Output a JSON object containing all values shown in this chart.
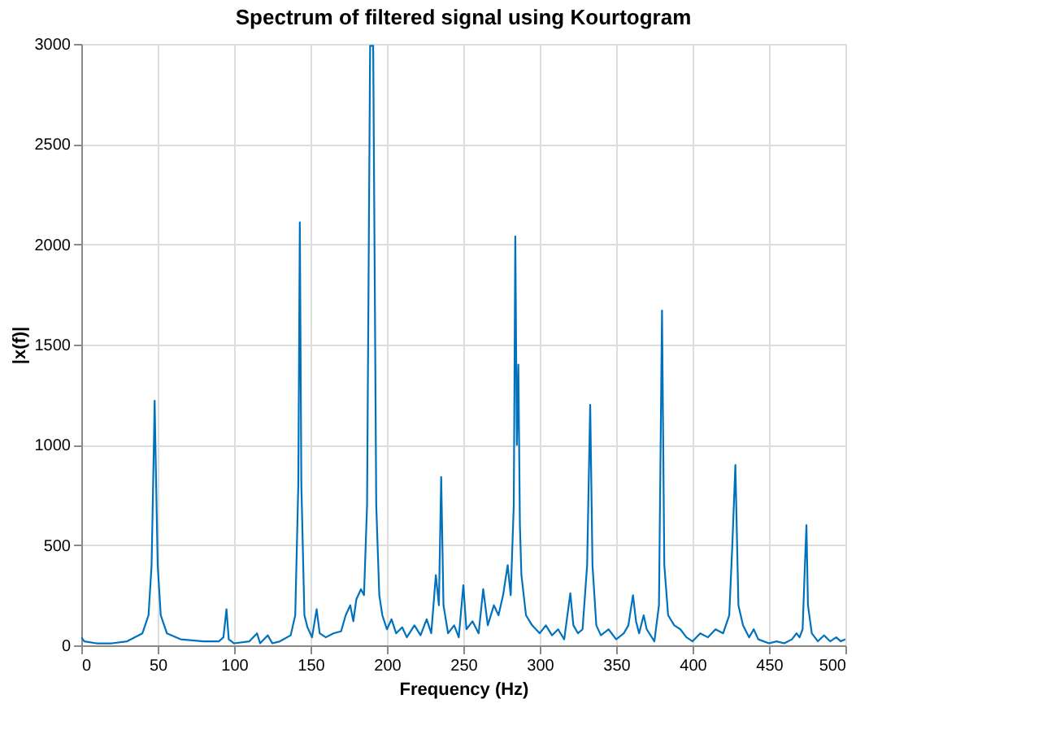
{
  "chart_data": {
    "type": "line",
    "title": "Spectrum of filtered signal using Kourtogram",
    "xlabel": "Frequency (Hz)",
    "ylabel": "|x(f)|",
    "xlim": [
      0,
      500
    ],
    "xticks": [
      0,
      50,
      100,
      150,
      200,
      250,
      300,
      350,
      400,
      450,
      500
    ],
    "ylim": [
      0,
      3000
    ],
    "yticks": [
      0,
      500,
      1000,
      1500,
      2000,
      2500,
      3000
    ],
    "grid": true,
    "series": [
      {
        "color": "#0072bd",
        "x": [
          0,
          2,
          10,
          20,
          30,
          40,
          44,
          46,
          47.5,
          48,
          48.5,
          50,
          52,
          56,
          65,
          80,
          90,
          93,
          95,
          96.5,
          100,
          110,
          115,
          117,
          122,
          125,
          130,
          137,
          140,
          142,
          143,
          144,
          146,
          148,
          151,
          154,
          156,
          160,
          165,
          170,
          173,
          176,
          178,
          180,
          183,
          185,
          187,
          189,
          191,
          193,
          195,
          197,
          200,
          203,
          206,
          210,
          213,
          218,
          222,
          226,
          229,
          232,
          234,
          235.5,
          237,
          240,
          244,
          247,
          250,
          252,
          256,
          260,
          263,
          266,
          270,
          273,
          276,
          279,
          281,
          283,
          284,
          285,
          286,
          287,
          288,
          291,
          295,
          300,
          304,
          308,
          312,
          316,
          320,
          322,
          325,
          328,
          331,
          333,
          334.5,
          337,
          340,
          345,
          350,
          355,
          358,
          361,
          363,
          365,
          368,
          370,
          375,
          378,
          380,
          381.5,
          384,
          388,
          392,
          396,
          400,
          405,
          410,
          415,
          420,
          424,
          426,
          428,
          430,
          433,
          437,
          440,
          443,
          450,
          455,
          460,
          465,
          468,
          470,
          472,
          473.5,
          474.5,
          475.5,
          478,
          482,
          486,
          490,
          494,
          497,
          500
        ],
        "values": [
          40,
          20,
          10,
          10,
          20,
          60,
          150,
          400,
          1000,
          1220,
          1000,
          400,
          150,
          60,
          30,
          20,
          20,
          40,
          180,
          30,
          10,
          20,
          60,
          10,
          50,
          10,
          20,
          50,
          150,
          800,
          2110,
          800,
          150,
          90,
          40,
          180,
          60,
          40,
          60,
          70,
          150,
          200,
          120,
          230,
          280,
          250,
          700,
          2990,
          2990,
          700,
          250,
          150,
          80,
          130,
          60,
          90,
          40,
          100,
          50,
          130,
          60,
          350,
          200,
          840,
          200,
          60,
          100,
          40,
          300,
          80,
          120,
          60,
          280,
          100,
          200,
          150,
          250,
          400,
          250,
          700,
          2040,
          1000,
          1400,
          600,
          350,
          150,
          100,
          60,
          100,
          50,
          80,
          30,
          260,
          100,
          60,
          80,
          400,
          1200,
          400,
          100,
          50,
          80,
          30,
          60,
          100,
          250,
          120,
          60,
          150,
          80,
          20,
          200,
          1670,
          400,
          150,
          100,
          80,
          40,
          20,
          60,
          40,
          80,
          60,
          150,
          500,
          900,
          200,
          100,
          40,
          80,
          30,
          10,
          20,
          10,
          30,
          60,
          40,
          80,
          400,
          600,
          200,
          60,
          20,
          50,
          20,
          40,
          20,
          30
        ]
      }
    ]
  }
}
